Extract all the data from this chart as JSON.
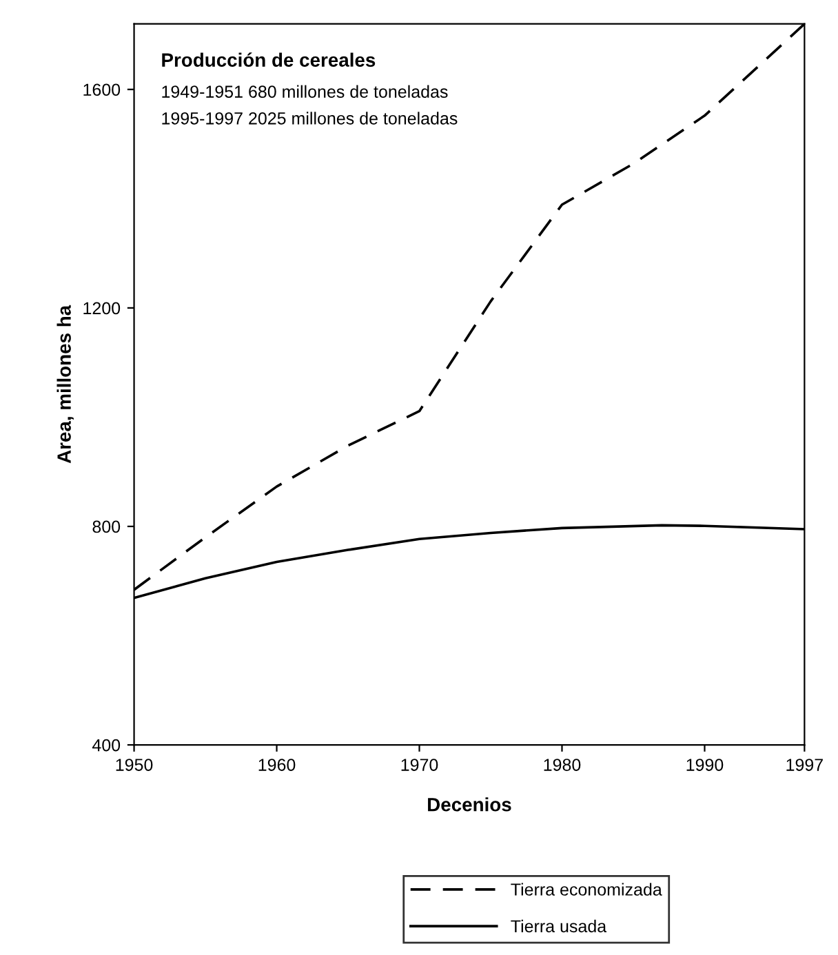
{
  "chart_data": {
    "type": "line",
    "title": "Producción de cereales",
    "annotations": [
      "1949-1951 680 millones de toneladas",
      "1995-1997 2025 millones de toneladas"
    ],
    "xlabel": "Decenios",
    "ylabel": "Area, millones ha",
    "xlim": [
      1950,
      1997
    ],
    "xticks": [
      1950,
      1960,
      1970,
      1980,
      1990,
      1997
    ],
    "ylim": [
      400,
      1720
    ],
    "yticks": [
      400,
      800,
      1200,
      1600
    ],
    "grid": false,
    "legend": "bottom",
    "marker": "none",
    "series": [
      {
        "name": "Tierra economizada",
        "color": "#000000",
        "line_style": "dashed",
        "x": [
          1950,
          1955,
          1960,
          1965,
          1970,
          1975,
          1980,
          1985,
          1990,
          1997
        ],
        "values": [
          684,
          780,
          873,
          948,
          1011,
          1212,
          1389,
          1464,
          1552,
          1720
        ]
      },
      {
        "name": "Tierra usada",
        "color": "#000000",
        "line_style": "solid",
        "x": [
          1950,
          1955,
          1960,
          1965,
          1970,
          1975,
          1980,
          1987,
          1990,
          1997
        ],
        "values": [
          669,
          705,
          735,
          757,
          777,
          788,
          797,
          802,
          801,
          795
        ]
      }
    ]
  }
}
